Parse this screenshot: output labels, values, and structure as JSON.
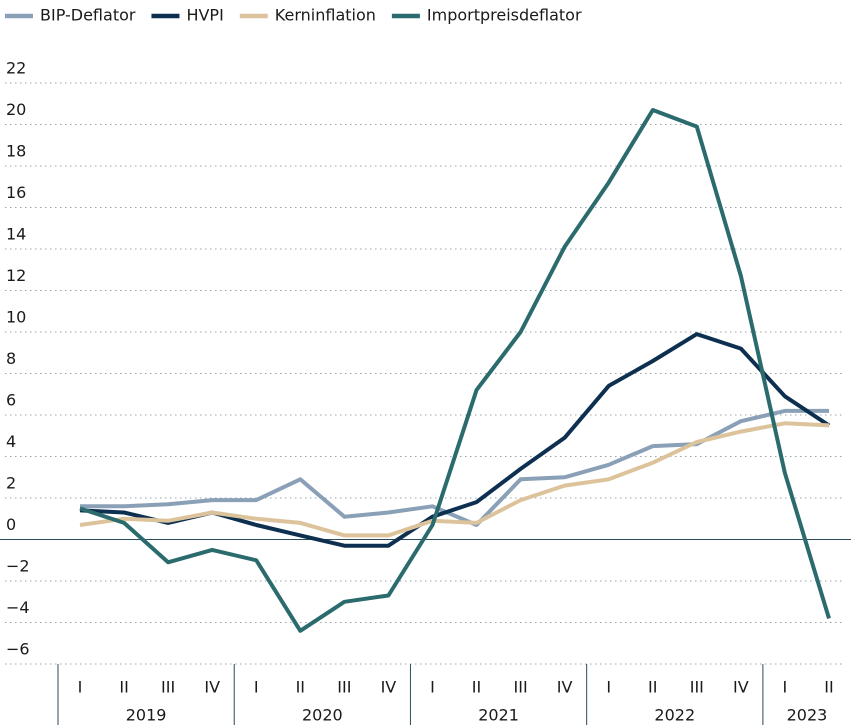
{
  "chart_data": {
    "type": "line",
    "categories": [
      "I",
      "II",
      "III",
      "IV",
      "I",
      "II",
      "III",
      "IV",
      "I",
      "II",
      "III",
      "IV",
      "I",
      "II",
      "III",
      "IV",
      "I",
      "II"
    ],
    "groups": [
      "2019",
      "2020",
      "2021",
      "2022",
      "2023"
    ],
    "series": [
      {
        "name": "BIP-Deflator",
        "color": "#8aa0b6",
        "values": [
          1.6,
          1.6,
          1.7,
          1.9,
          1.9,
          2.9,
          1.1,
          1.3,
          1.6,
          0.7,
          2.9,
          3.0,
          3.6,
          4.5,
          4.6,
          5.7,
          6.2,
          6.2
        ]
      },
      {
        "name": "HVPI",
        "color": "#0e3050",
        "values": [
          1.4,
          1.3,
          0.8,
          1.3,
          0.7,
          0.2,
          -0.3,
          -0.3,
          1.1,
          1.8,
          3.4,
          4.9,
          7.4,
          8.6,
          9.9,
          9.2,
          6.9,
          5.5
        ]
      },
      {
        "name": "Kerninflation",
        "color": "#dcc39b",
        "values": [
          0.7,
          1.0,
          0.9,
          1.3,
          1.0,
          0.8,
          0.2,
          0.2,
          0.9,
          0.8,
          1.9,
          2.6,
          2.9,
          3.7,
          4.7,
          5.2,
          5.6,
          5.5
        ]
      },
      {
        "name": "Importpreisdeflator",
        "color": "#2b6b6e",
        "values": [
          1.5,
          0.8,
          -1.1,
          -0.5,
          -1.0,
          -4.4,
          -3.0,
          -2.7,
          0.7,
          7.2,
          10.0,
          14.1,
          17.2,
          20.7,
          19.9,
          12.7,
          3.2,
          -3.8
        ]
      }
    ],
    "ylim": [
      -6,
      22
    ],
    "yticks": [
      {
        "value": -6,
        "label": "−6"
      },
      {
        "value": -4,
        "label": "−4"
      },
      {
        "value": -2,
        "label": "−2"
      },
      0,
      2,
      4,
      6,
      8,
      10,
      12,
      14,
      16,
      18,
      20,
      22
    ],
    "grid": true
  }
}
